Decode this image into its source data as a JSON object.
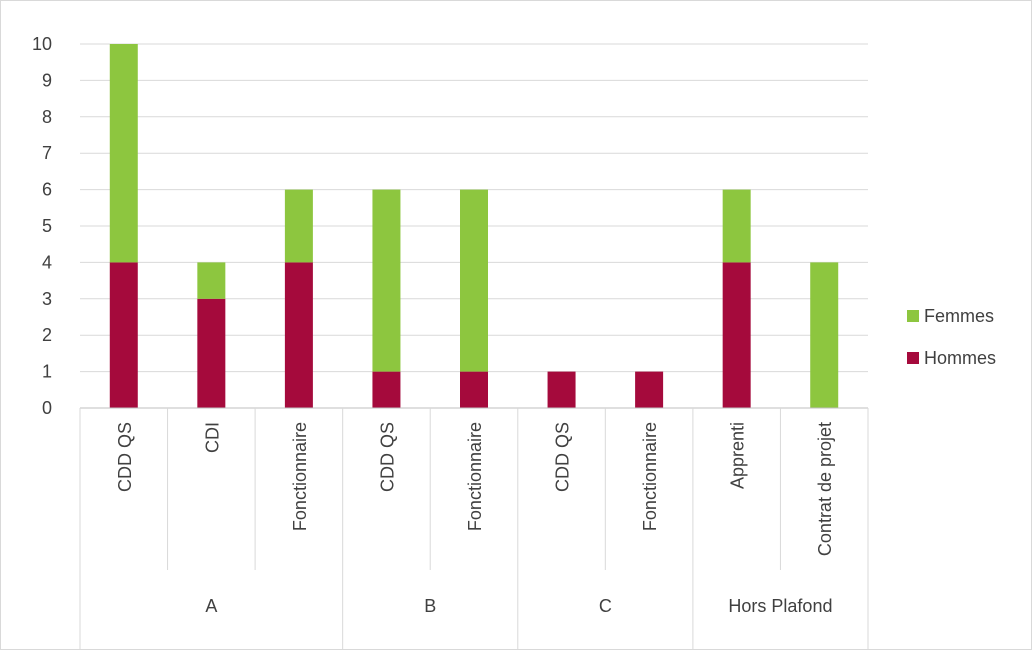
{
  "chart_data": {
    "type": "bar",
    "stacked": true,
    "groups": [
      {
        "label": "A",
        "categories": [
          "CDD QS",
          "CDI",
          "Fonctionnaire"
        ]
      },
      {
        "label": "B",
        "categories": [
          "CDD QS",
          "Fonctionnaire"
        ]
      },
      {
        "label": "C",
        "categories": [
          "CDD QS",
          "Fonctionnaire"
        ]
      },
      {
        "label": "Hors Plafond",
        "categories": [
          "Apprenti",
          "Contrat de projet"
        ]
      }
    ],
    "series": [
      {
        "name": "Hommes",
        "color": "#a50a3c",
        "values": [
          4,
          3,
          4,
          1,
          1,
          1,
          1,
          4,
          0
        ]
      },
      {
        "name": "Femmes",
        "color": "#8dc63f",
        "values": [
          6,
          1,
          2,
          5,
          5,
          0,
          0,
          2,
          4
        ]
      }
    ],
    "ylim": [
      0,
      10
    ],
    "yticks": [
      "0",
      "1",
      "2",
      "3",
      "4",
      "5",
      "6",
      "7",
      "8",
      "9",
      "10"
    ],
    "grid": true,
    "legend_position": "right",
    "title": "",
    "xlabel": "",
    "ylabel": ""
  }
}
